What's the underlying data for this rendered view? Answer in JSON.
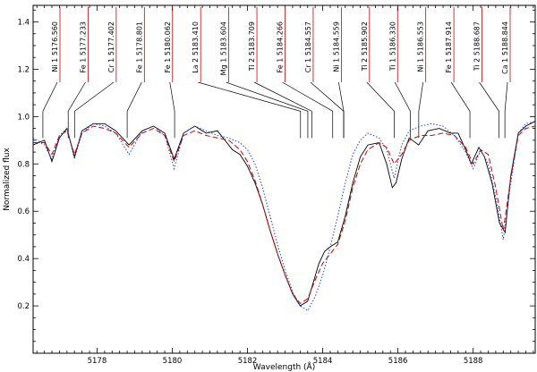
{
  "chart_data": {
    "type": "line",
    "xlabel": "Wavelength (Å)",
    "ylabel": "Normalized flux",
    "xlim": [
      5176.3,
      5189.65
    ],
    "ylim": [
      0.0,
      1.47
    ],
    "x_ticks": [
      5178,
      5180,
      5182,
      5184,
      5186,
      5188
    ],
    "y_ticks": [
      0.2,
      0.4,
      0.6,
      0.8,
      1.0,
      1.2,
      1.4
    ],
    "grid": false,
    "series": [
      {
        "style": "solid",
        "color": "#000000",
        "x": [
          5176.3,
          5176.6,
          5176.8,
          5177.0,
          5177.2,
          5177.4,
          5177.6,
          5177.9,
          5178.2,
          5178.5,
          5178.85,
          5179.2,
          5179.5,
          5179.8,
          5180.05,
          5180.3,
          5180.6,
          5180.9,
          5181.2,
          5181.45,
          5181.6,
          5181.8,
          5182.0,
          5182.2,
          5182.4,
          5182.6,
          5182.8,
          5183.0,
          5183.2,
          5183.4,
          5183.6,
          5183.75,
          5183.9,
          5184.05,
          5184.2,
          5184.4,
          5184.6,
          5184.8,
          5185.0,
          5185.2,
          5185.5,
          5185.7,
          5185.85,
          5185.95,
          5186.1,
          5186.3,
          5186.55,
          5186.8,
          5187.1,
          5187.4,
          5187.6,
          5187.8,
          5187.95,
          5188.15,
          5188.3,
          5188.5,
          5188.7,
          5188.85,
          5189.0,
          5189.2,
          5189.4,
          5189.65
        ],
        "values": [
          0.88,
          0.9,
          0.81,
          0.91,
          0.95,
          0.83,
          0.94,
          0.97,
          0.97,
          0.94,
          0.88,
          0.94,
          0.96,
          0.93,
          0.82,
          0.93,
          0.96,
          0.93,
          0.94,
          0.89,
          0.86,
          0.84,
          0.79,
          0.72,
          0.63,
          0.52,
          0.42,
          0.33,
          0.25,
          0.2,
          0.22,
          0.3,
          0.38,
          0.43,
          0.45,
          0.47,
          0.58,
          0.72,
          0.83,
          0.88,
          0.89,
          0.8,
          0.7,
          0.72,
          0.82,
          0.91,
          0.88,
          0.94,
          0.95,
          0.93,
          0.93,
          0.86,
          0.8,
          0.87,
          0.83,
          0.72,
          0.55,
          0.51,
          0.75,
          0.93,
          0.96,
          0.98
        ]
      },
      {
        "style": "dashed",
        "color": "#cc0000",
        "x": [
          5176.3,
          5176.6,
          5176.8,
          5177.0,
          5177.2,
          5177.4,
          5177.6,
          5177.9,
          5178.2,
          5178.5,
          5178.85,
          5179.2,
          5179.5,
          5179.8,
          5180.05,
          5180.3,
          5180.6,
          5180.9,
          5181.2,
          5181.5,
          5181.8,
          5182.0,
          5182.2,
          5182.4,
          5182.6,
          5182.8,
          5183.0,
          5183.2,
          5183.4,
          5183.6,
          5183.8,
          5184.0,
          5184.2,
          5184.4,
          5184.6,
          5184.8,
          5185.0,
          5185.2,
          5185.5,
          5185.7,
          5185.9,
          5186.1,
          5186.3,
          5186.6,
          5186.9,
          5187.2,
          5187.5,
          5187.8,
          5188.0,
          5188.2,
          5188.4,
          5188.6,
          5188.8,
          5189.0,
          5189.2,
          5189.4,
          5189.65
        ],
        "values": [
          0.89,
          0.89,
          0.84,
          0.92,
          0.94,
          0.84,
          0.93,
          0.96,
          0.95,
          0.93,
          0.87,
          0.93,
          0.95,
          0.92,
          0.81,
          0.92,
          0.94,
          0.92,
          0.91,
          0.9,
          0.86,
          0.81,
          0.73,
          0.63,
          0.52,
          0.42,
          0.33,
          0.25,
          0.21,
          0.23,
          0.31,
          0.38,
          0.42,
          0.46,
          0.56,
          0.7,
          0.8,
          0.86,
          0.89,
          0.87,
          0.8,
          0.84,
          0.9,
          0.92,
          0.92,
          0.93,
          0.92,
          0.87,
          0.8,
          0.86,
          0.84,
          0.7,
          0.52,
          0.74,
          0.92,
          0.95,
          0.96
        ]
      },
      {
        "style": "dotted",
        "color": "#1f3fdb",
        "x": [
          5176.3,
          5176.6,
          5176.8,
          5177.0,
          5177.2,
          5177.4,
          5177.6,
          5177.9,
          5178.2,
          5178.5,
          5178.85,
          5179.2,
          5179.5,
          5179.8,
          5180.05,
          5180.3,
          5180.6,
          5180.9,
          5181.2,
          5181.5,
          5181.8,
          5182.0,
          5182.2,
          5182.4,
          5182.6,
          5182.8,
          5183.0,
          5183.2,
          5183.4,
          5183.6,
          5183.8,
          5184.0,
          5184.2,
          5184.4,
          5184.6,
          5184.8,
          5185.0,
          5185.2,
          5185.5,
          5185.7,
          5185.9,
          5186.1,
          5186.3,
          5186.6,
          5186.9,
          5187.2,
          5187.5,
          5187.8,
          5188.0,
          5188.2,
          5188.4,
          5188.6,
          5188.8,
          5189.0,
          5189.2,
          5189.4,
          5189.65
        ],
        "values": [
          0.91,
          0.88,
          0.82,
          0.92,
          0.95,
          0.82,
          0.93,
          0.97,
          0.96,
          0.93,
          0.84,
          0.94,
          0.96,
          0.92,
          0.78,
          0.93,
          0.96,
          0.94,
          0.92,
          0.91,
          0.89,
          0.86,
          0.8,
          0.7,
          0.58,
          0.46,
          0.35,
          0.26,
          0.2,
          0.18,
          0.24,
          0.33,
          0.45,
          0.58,
          0.72,
          0.84,
          0.9,
          0.93,
          0.91,
          0.86,
          0.74,
          0.88,
          0.94,
          0.96,
          0.97,
          0.96,
          0.92,
          0.85,
          0.78,
          0.86,
          0.8,
          0.66,
          0.48,
          0.72,
          0.93,
          0.97,
          0.98
        ]
      }
    ],
    "line_ids": [
      {
        "label": "Ni 1 5176.560",
        "x": 5176.56
      },
      {
        "label": "Fe 1 5177.233",
        "x": 5177.233
      },
      {
        "label": "Cr 1 5177.402",
        "x": 5177.402
      },
      {
        "label": "Fe 1 5178.801",
        "x": 5178.801
      },
      {
        "label": "Fe 1 5180.062",
        "x": 5180.062
      },
      {
        "label": "La 2 5183.410",
        "x": 5183.41
      },
      {
        "label": "Mg 1 5183.604",
        "x": 5183.604
      },
      {
        "label": "Ti 2 5183.709",
        "x": 5183.709
      },
      {
        "label": "Fe 1 5184.266",
        "x": 5184.266
      },
      {
        "label": "Cr 1 5184.557",
        "x": 5184.557
      },
      {
        "label": "Ni 1 5184.559",
        "x": 5184.559
      },
      {
        "label": "Ti 2 5185.902",
        "x": 5185.902
      },
      {
        "label": "Ti 1 5186.330",
        "x": 5186.33
      },
      {
        "label": "Ni 1 5186.553",
        "x": 5186.553
      },
      {
        "label": "Fe 1 5187.914",
        "x": 5187.914
      },
      {
        "label": "Ti 2 5188.687",
        "x": 5188.687
      },
      {
        "label": "Ca 1 5188.844",
        "x": 5188.844
      }
    ]
  }
}
